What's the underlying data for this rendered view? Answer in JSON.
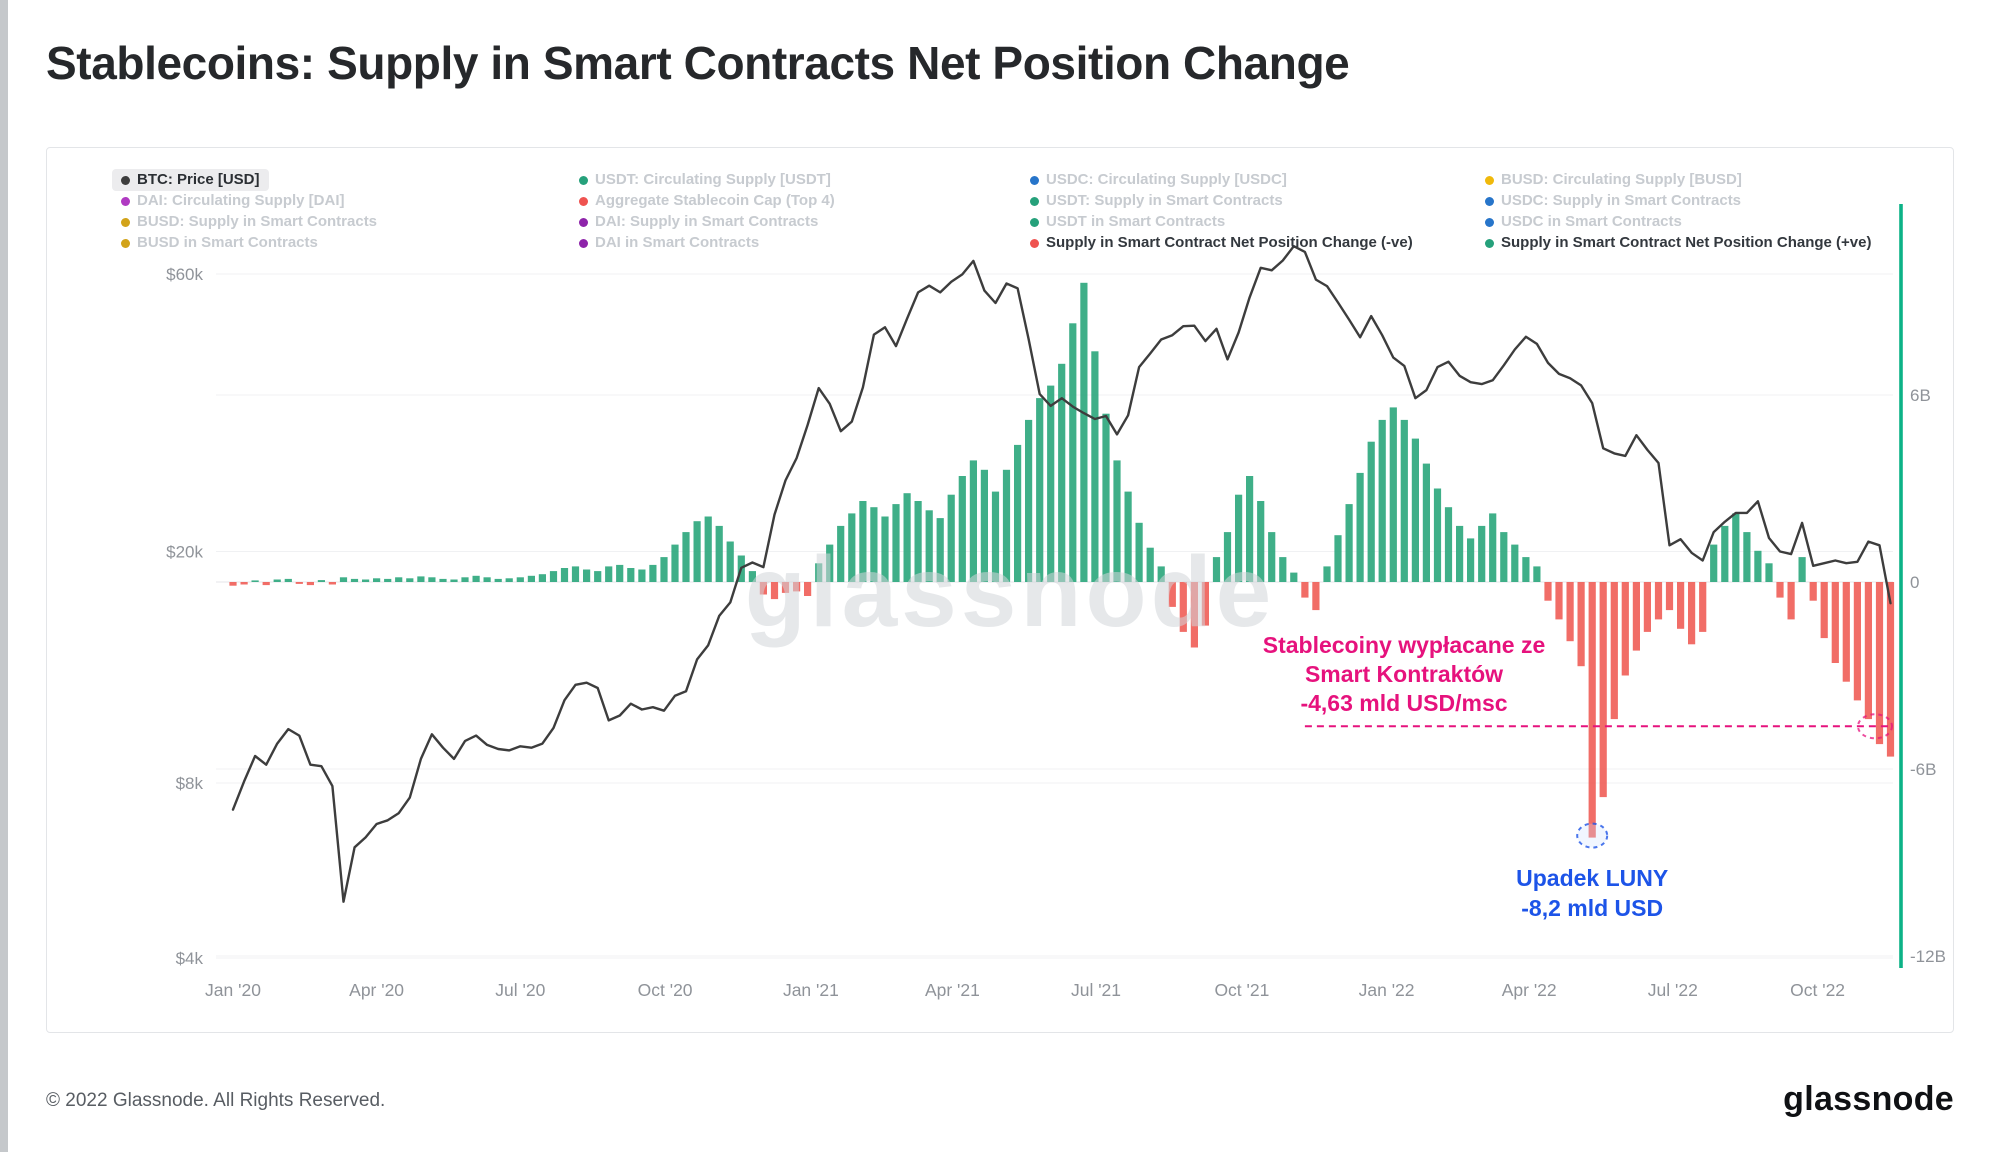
{
  "page": {
    "title": "Stablecoins: Supply in Smart Contracts Net Position Change"
  },
  "watermark": "glassnode",
  "footer": {
    "copyright": "© 2022 Glassnode. All Rights Reserved.",
    "logo_text": "glassnode"
  },
  "colors": {
    "btc_line": "#3d3d3d",
    "bar_green": "#2fa87e",
    "bar_red": "#f0615a",
    "accent_teal": "#0cb287",
    "annotation_pink": "#e6127d",
    "annotation_blue": "#1d54e8",
    "axis_text": "#8f9399",
    "grid": "#f0f1f3",
    "zero_line": "#e4e6e9"
  },
  "legend": {
    "items": [
      {
        "label": "BTC: Price [USD]",
        "color": "#3d3d3d",
        "state": "selected"
      },
      {
        "label": "USDT: Circulating Supply [USDT]",
        "color": "#26a17b",
        "state": "inactive"
      },
      {
        "label": "USDC: Circulating Supply [USDC]",
        "color": "#2775ca",
        "state": "inactive"
      },
      {
        "label": "BUSD: Circulating Supply [BUSD]",
        "color": "#f0b90b",
        "state": "inactive"
      },
      {
        "label": "DAI: Circulating Supply [DAI]",
        "color": "#b03ac2",
        "state": "inactive"
      },
      {
        "label": "Aggregate Stablecoin Cap (Top 4)",
        "color": "#ef5350",
        "state": "inactive"
      },
      {
        "label": "USDT: Supply in Smart Contracts",
        "color": "#26a17b",
        "state": "inactive"
      },
      {
        "label": "USDC: Supply in Smart Contracts",
        "color": "#2775ca",
        "state": "inactive"
      },
      {
        "label": "BUSD: Supply in Smart Contracts",
        "color": "#d2a31a",
        "state": "inactive"
      },
      {
        "label": "DAI: Supply in Smart Contracts",
        "color": "#8e24aa",
        "state": "inactive"
      },
      {
        "label": "USDT in Smart Contracts",
        "color": "#26a17b",
        "state": "inactive"
      },
      {
        "label": "USDC in Smart Contracts",
        "color": "#2775ca",
        "state": "inactive"
      },
      {
        "label": "BUSD in Smart Contracts",
        "color": "#d2a31a",
        "state": "inactive"
      },
      {
        "label": "DAI in Smart Contracts",
        "color": "#8e24aa",
        "state": "inactive"
      },
      {
        "label": "Supply in Smart Contract Net Position Change (-ve)",
        "color": "#ef5350",
        "state": "active"
      },
      {
        "label": "Supply in Smart Contract Net Position Change (+ve)",
        "color": "#26a17b",
        "state": "active"
      }
    ]
  },
  "annotations": {
    "withdrawal": {
      "text_lines": [
        "Stablecoiny wypłacane ze",
        "Smart Kontraktów",
        "-4,63 mld USD/msc"
      ],
      "level_b": -4.63,
      "color": "#e6127d"
    },
    "luna": {
      "text_lines": [
        "Upadek LUNY",
        "-8,2 mld USD"
      ],
      "level_b": -8.2,
      "week": 123,
      "color": "#1d54e8"
    }
  },
  "chart_data": {
    "type": "line+bar",
    "x_start": "2020-01-01",
    "x_step": "1 week",
    "x_ticks": [
      {
        "label": "Jan '20",
        "week": 0
      },
      {
        "label": "Apr '20",
        "week": 13
      },
      {
        "label": "Jul '20",
        "week": 26
      },
      {
        "label": "Oct '20",
        "week": 39.1
      },
      {
        "label": "Jan '21",
        "week": 52.3
      },
      {
        "label": "Apr '21",
        "week": 65.1
      },
      {
        "label": "Jul '21",
        "week": 78.1
      },
      {
        "label": "Oct '21",
        "week": 91.3
      },
      {
        "label": "Jan '22",
        "week": 104.4
      },
      {
        "label": "Apr '22",
        "week": 117.3
      },
      {
        "label": "Jul '22",
        "week": 130.3
      },
      {
        "label": "Oct '22",
        "week": 143.4
      }
    ],
    "left_axis": {
      "scale": "log",
      "ticks": [
        {
          "label": "$60k",
          "value": 60000
        },
        {
          "label": "$20k",
          "value": 20000
        },
        {
          "label": "$8k",
          "value": 8000
        },
        {
          "label": "$4k",
          "value": 4000
        }
      ]
    },
    "right_axis": {
      "scale": "linear",
      "unit": "B USD",
      "ticks": [
        {
          "label": "6B",
          "value": 6
        },
        {
          "label": "0",
          "value": 0
        },
        {
          "label": "-6B",
          "value": -6
        },
        {
          "label": "-12B",
          "value": -12
        }
      ]
    },
    "series": [
      {
        "name": "BTC: Price [USD]",
        "type": "line",
        "axis": "left",
        "color": "#3d3d3d",
        "values": [
          7200,
          8050,
          8900,
          8600,
          9350,
          9900,
          9650,
          8600,
          8550,
          7900,
          5000,
          6200,
          6450,
          6800,
          6900,
          7100,
          7550,
          8800,
          9700,
          9200,
          8800,
          9450,
          9650,
          9300,
          9150,
          9100,
          9250,
          9200,
          9350,
          9950,
          11100,
          11800,
          11900,
          11650,
          10250,
          10450,
          10950,
          10700,
          10800,
          10650,
          11300,
          11500,
          13050,
          13800,
          15500,
          16350,
          18750,
          19150,
          18800,
          23150,
          26500,
          28950,
          33000,
          38200,
          35900,
          32200,
          33450,
          38300,
          47200,
          48600,
          45100,
          50300,
          55800,
          57300,
          55800,
          58200,
          59900,
          63200,
          56200,
          53500,
          57800,
          56700,
          46400,
          37300,
          35600,
          36700,
          35500,
          34600,
          33800,
          34200,
          31800,
          34300,
          41500,
          43800,
          46300,
          47100,
          48800,
          48900,
          46000,
          48300,
          42800,
          47600,
          54700,
          61500,
          60900,
          63300,
          67000,
          65500,
          58700,
          57200,
          53600,
          50100,
          46700,
          50800,
          47100,
          43100,
          41700,
          36700,
          37900,
          41500,
          42400,
          40100,
          39100,
          38800,
          39400,
          41800,
          44500,
          46800,
          45500,
          42200,
          40400,
          39700,
          38600,
          36000,
          30100,
          29500,
          29200,
          31700,
          29900,
          28400,
          20500,
          21000,
          19900,
          19300,
          21600,
          22500,
          23300,
          23300,
          24400,
          21100,
          20000,
          19800,
          22400,
          18900,
          19100,
          19300,
          19100,
          19200,
          20800,
          20500,
          16300
        ]
      },
      {
        "name": "Supply in Smart Contract Net Position Change",
        "type": "bar",
        "axis": "right",
        "color_positive": "#2fa87e",
        "color_negative": "#f0615a",
        "values": [
          -0.12,
          -0.08,
          0.05,
          -0.1,
          0.08,
          0.1,
          -0.06,
          -0.1,
          0.06,
          -0.08,
          0.15,
          0.1,
          0.08,
          0.12,
          0.1,
          0.15,
          0.12,
          0.18,
          0.15,
          0.1,
          0.08,
          0.15,
          0.2,
          0.15,
          0.1,
          0.12,
          0.15,
          0.2,
          0.25,
          0.35,
          0.45,
          0.5,
          0.4,
          0.35,
          0.5,
          0.55,
          0.45,
          0.4,
          0.55,
          0.8,
          1.2,
          1.6,
          1.95,
          2.1,
          1.8,
          1.3,
          0.85,
          0.35,
          -0.4,
          -0.55,
          -0.35,
          -0.3,
          -0.45,
          0.6,
          1.2,
          1.8,
          2.2,
          2.6,
          2.4,
          2.1,
          2.5,
          2.85,
          2.6,
          2.3,
          2.05,
          2.8,
          3.4,
          3.9,
          3.6,
          2.9,
          3.6,
          4.4,
          5.2,
          5.9,
          6.3,
          7.0,
          8.3,
          9.6,
          7.4,
          5.4,
          3.9,
          2.9,
          1.9,
          1.1,
          0.5,
          -0.8,
          -1.6,
          -2.1,
          -1.4,
          0.8,
          1.6,
          2.8,
          3.4,
          2.6,
          1.6,
          0.8,
          0.3,
          -0.5,
          -0.9,
          0.5,
          1.5,
          2.5,
          3.5,
          4.5,
          5.2,
          5.6,
          5.2,
          4.6,
          3.8,
          3.0,
          2.4,
          1.8,
          1.4,
          1.8,
          2.2,
          1.6,
          1.2,
          0.8,
          0.5,
          -0.6,
          -1.2,
          -1.9,
          -2.7,
          -8.2,
          -6.9,
          -4.4,
          -3.0,
          -2.2,
          -1.6,
          -1.2,
          -0.9,
          -1.5,
          -2.0,
          -1.6,
          1.2,
          1.8,
          2.2,
          1.6,
          1.0,
          0.6,
          -0.5,
          -1.2,
          0.8,
          -0.6,
          -1.8,
          -2.6,
          -3.2,
          -3.8,
          -4.4,
          -5.2,
          -5.6
        ]
      }
    ]
  }
}
